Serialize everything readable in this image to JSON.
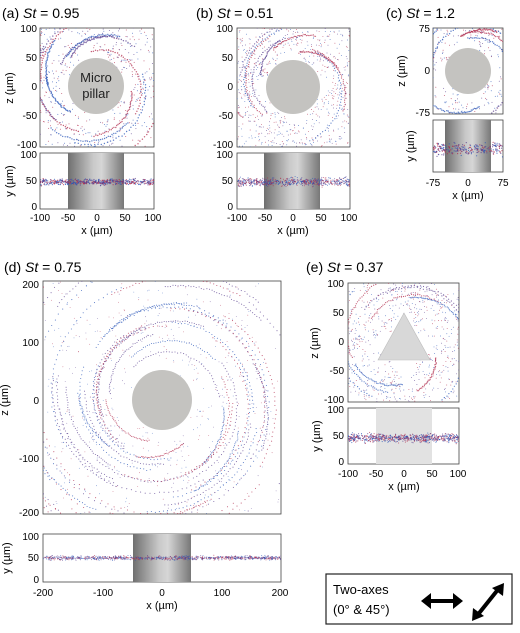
{
  "figure": {
    "panels": [
      {
        "id": "a",
        "label": "(a) ",
        "st_prefix": "St",
        "st_value": " = 0.95",
        "pillar_label": [
          "Micro",
          "pillar"
        ],
        "xlabel": "x (µm)",
        "zlabel": "z (µm)",
        "ylabel": "y (µm)",
        "x_ticks": [
          "-100",
          "-50",
          "0",
          "50",
          "100"
        ],
        "z_ticks": [
          "100",
          "50",
          "0",
          "-50",
          "-100"
        ],
        "y_ticks": [
          "100",
          "50",
          "0"
        ]
      },
      {
        "id": "b",
        "label": "(b) ",
        "st_prefix": "St",
        "st_value": " = 0.51",
        "xlabel": "x (µm)",
        "x_ticks": [
          "-100",
          "-50",
          "0",
          "50",
          "100"
        ],
        "z_ticks": [
          "100",
          "50",
          "0",
          "-50",
          "-100"
        ],
        "y_ticks": [
          "100",
          "50",
          "0"
        ]
      },
      {
        "id": "c",
        "label": "(c) ",
        "st_prefix": "St",
        "st_value": " = 1.2",
        "xlabel": "x (µm)",
        "zlabel": "z (µm)",
        "ylabel": "y (µm)",
        "x_ticks": [
          "-75",
          "0",
          "75"
        ],
        "z_ticks": [
          "75",
          "0",
          "-75"
        ]
      },
      {
        "id": "d",
        "label": "(d) ",
        "st_prefix": "St",
        "st_value": " = 0.75",
        "xlabel": "x (µm)",
        "zlabel": "z (µm)",
        "ylabel": "y (µm)",
        "x_ticks": [
          "-200",
          "-100",
          "0",
          "100",
          "200"
        ],
        "z_ticks": [
          "200",
          "100",
          "0",
          "-100",
          "-200"
        ],
        "y_ticks": [
          "100",
          "50",
          "0"
        ]
      },
      {
        "id": "e",
        "label": "(e) ",
        "st_prefix": "St",
        "st_value": " = 0.37",
        "xlabel": "x (µm)",
        "zlabel": "z (µm)",
        "ylabel": "y (µm)",
        "x_ticks": [
          "-100",
          "-50",
          "0",
          "50",
          "100"
        ],
        "z_ticks": [
          "100",
          "50",
          "0",
          "-50",
          "-100"
        ],
        "y_ticks": [
          "100",
          "50",
          "0"
        ]
      }
    ],
    "legend": {
      "line1": "Two-axes",
      "line2": "(0° & 45°)",
      "arrow_icons": [
        "double-arrow-horizontal-icon",
        "double-arrow-diagonal-icon"
      ]
    },
    "colors": {
      "particle_red": "#b0284a",
      "particle_blue": "#2a55b8",
      "particle_purple": "#5a3f8f",
      "pillar": "#c4c3c0"
    }
  }
}
